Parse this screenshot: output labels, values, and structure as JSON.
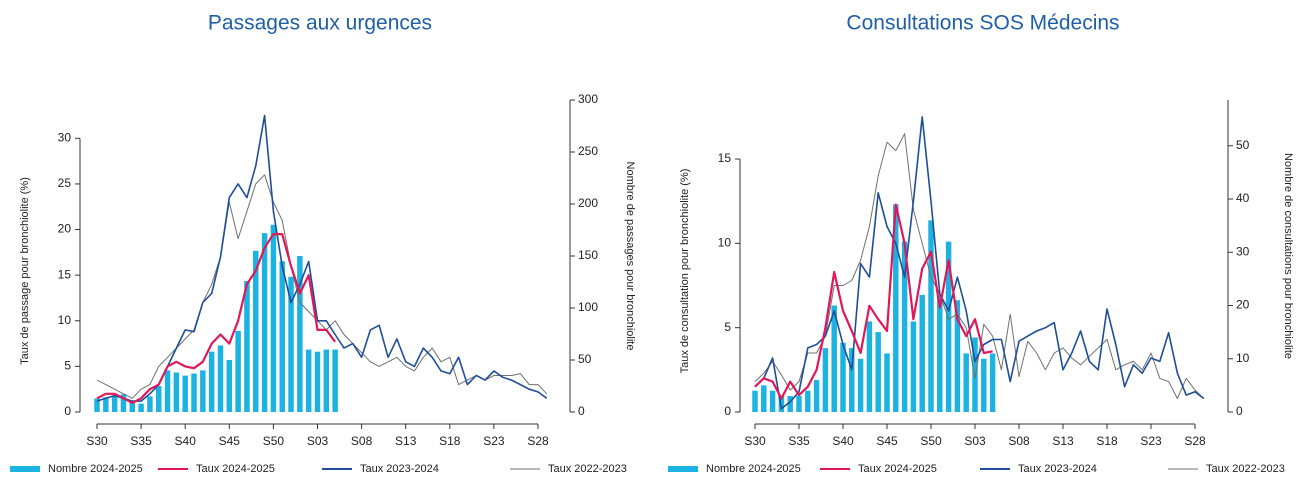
{
  "chart_data": [
    {
      "type": "bar",
      "title": "Passages aux urgences",
      "y_label": "Taux de passage pour bronchiolite (%)",
      "y2_label": "Nombre de passages pour bronchiolite",
      "categories": [
        "S30",
        null,
        null,
        null,
        null,
        "S35",
        null,
        null,
        null,
        null,
        "S40",
        null,
        null,
        null,
        null,
        "S45",
        null,
        null,
        null,
        null,
        "S50",
        null,
        null,
        null,
        null,
        "S03",
        null,
        null,
        null,
        null,
        "S08",
        null,
        null,
        null,
        null,
        "S13",
        null,
        null,
        null,
        null,
        "S18",
        null,
        null,
        null,
        null,
        "S23",
        null,
        null,
        null,
        null,
        "S28",
        null
      ],
      "ylim": [
        0,
        34.2
      ],
      "yticks": [
        0,
        5,
        10,
        15,
        20,
        25,
        30
      ],
      "y2lim": [
        0,
        300
      ],
      "y2ticks": [
        0,
        50,
        100,
        150,
        200,
        250,
        300
      ],
      "series": [
        {
          "name": "Nombre 2024-2025",
          "type": "bar",
          "axis": "y2",
          "color": "#1cb3e3",
          "values": [
            13,
            14,
            16,
            17,
            11,
            8,
            15,
            25,
            40,
            38,
            35,
            37,
            40,
            58,
            64,
            50,
            78,
            126,
            155,
            172,
            180,
            145,
            130,
            150,
            60,
            58,
            60,
            60,
            null,
            null,
            null,
            null,
            null,
            null,
            null,
            null,
            null,
            null,
            null,
            null,
            null,
            null,
            null,
            null,
            null,
            null,
            null,
            null,
            null,
            null,
            null,
            null
          ]
        },
        {
          "name": "Taux 2024-2025",
          "type": "line",
          "color": "#e0185a",
          "values": [
            1.5,
            2,
            2,
            1.5,
            1,
            1.5,
            2.5,
            3,
            5,
            5.5,
            5,
            4.8,
            5.5,
            7.5,
            8.5,
            7.5,
            10,
            14,
            15.5,
            18,
            19.5,
            19.5,
            16,
            13,
            15,
            9,
            9,
            7.7,
            null,
            null,
            null,
            null,
            null,
            null,
            null,
            null,
            null,
            null,
            null,
            null,
            null,
            null,
            null,
            null,
            null,
            null,
            null,
            null,
            null,
            null,
            null,
            null
          ]
        },
        {
          "name": "Taux 2023-2024",
          "type": "line",
          "color": "#1f4e99",
          "values": [
            1.2,
            1.5,
            1.8,
            1.5,
            1.2,
            1.2,
            2,
            3,
            5,
            7,
            9,
            8.8,
            12,
            13,
            17,
            23.5,
            25,
            23.5,
            27,
            32.5,
            22,
            16,
            12,
            14,
            16.5,
            10,
            10,
            8.5,
            7,
            7.5,
            6,
            9,
            9.5,
            6,
            8,
            5.5,
            5,
            7,
            6,
            4.5,
            4.2,
            6,
            3,
            4,
            3.5,
            4.5,
            3.8,
            3.5,
            3,
            2.5,
            2.2,
            1.5
          ]
        },
        {
          "name": "Taux 2022-2023",
          "type": "line",
          "color": "#707070",
          "values": [
            3.5,
            3,
            2.5,
            2,
            1.5,
            2.5,
            3,
            5,
            6,
            7,
            8,
            9,
            12,
            14,
            17,
            23,
            19,
            22,
            25,
            26,
            23,
            21,
            16,
            12,
            11,
            10,
            9,
            10,
            8.5,
            7.5,
            6.5,
            5.5,
            5,
            5.5,
            6,
            5,
            4.5,
            6,
            7,
            5.5,
            6,
            3,
            3.5,
            4,
            3.5,
            4,
            4,
            4,
            4.2,
            3,
            3,
            2
          ]
        }
      ]
    },
    {
      "type": "bar",
      "title": "Consultations SOS Médecins",
      "y_label": "Taux de consultation pour bronchiolite (%)",
      "y2_label": "Nombre de consultations pour bronchiolite",
      "categories": [
        "S30",
        null,
        null,
        null,
        null,
        "S35",
        null,
        null,
        null,
        null,
        "S40",
        null,
        null,
        null,
        null,
        "S45",
        null,
        null,
        null,
        null,
        "S50",
        null,
        null,
        null,
        null,
        "S03",
        null,
        null,
        null,
        null,
        "S08",
        null,
        null,
        null,
        null,
        "S13",
        null,
        null,
        null,
        null,
        "S18",
        null,
        null,
        null,
        null,
        "S23",
        null,
        null,
        null,
        null,
        "S28",
        null
      ],
      "ylim": [
        0,
        18.5
      ],
      "yticks": [
        0,
        5,
        10,
        15
      ],
      "y2lim": [
        0,
        58.6
      ],
      "y2ticks": [
        0,
        10,
        20,
        30,
        40,
        50
      ],
      "series": [
        {
          "name": "Nombre 2024-2025",
          "type": "bar",
          "axis": "y2",
          "color": "#1cb3e3",
          "values": [
            4,
            5,
            4,
            3,
            3,
            3,
            4,
            6,
            12,
            20,
            13,
            12,
            10,
            17,
            15,
            11,
            39,
            32,
            17,
            22,
            36,
            22,
            32,
            21,
            11,
            14,
            10,
            11,
            null,
            null,
            null,
            null,
            null,
            null,
            null,
            null,
            null,
            null,
            null,
            null,
            null,
            null,
            null,
            null,
            null,
            null,
            null,
            null,
            null,
            null,
            null,
            null
          ]
        },
        {
          "name": "Taux 2024-2025",
          "type": "line",
          "color": "#e0185a",
          "values": [
            1.5,
            2,
            1.8,
            0.8,
            1.8,
            1,
            1.5,
            2.5,
            5,
            8.3,
            6,
            4.8,
            3.5,
            6.3,
            5.5,
            4.8,
            12.3,
            10,
            5.5,
            8.5,
            9.5,
            6.2,
            9,
            5.5,
            4.5,
            5.5,
            3.5,
            3.6,
            null,
            null,
            null,
            null,
            null,
            null,
            null,
            null,
            null,
            null,
            null,
            null,
            null,
            null,
            null,
            null,
            null,
            null,
            null,
            null,
            null,
            null,
            null,
            null
          ]
        },
        {
          "name": "Taux 2023-2024",
          "type": "line",
          "color": "#1f4e99",
          "values": [
            1.5,
            2,
            3.2,
            0.2,
            0.6,
            1.2,
            3.8,
            4,
            4.5,
            6,
            4,
            2.5,
            8.8,
            8,
            13,
            11,
            10,
            8,
            12.5,
            17.5,
            12.5,
            7,
            6,
            8,
            6,
            3,
            4,
            4.3,
            4.3,
            1.8,
            4.2,
            4.5,
            4.8,
            5,
            5.3,
            2.5,
            3.5,
            4.8,
            3,
            2.5,
            6.1,
            4,
            1.5,
            2.8,
            2.3,
            3.2,
            3,
            4.7,
            2.3,
            1,
            1.2,
            0.8
          ]
        },
        {
          "name": "Taux 2022-2023",
          "type": "line",
          "color": "#707070",
          "values": [
            1.8,
            2.3,
            3,
            2.2,
            1.3,
            1.8,
            3.5,
            3.5,
            4.5,
            7.5,
            7.5,
            7.8,
            9,
            11,
            14,
            16,
            15.5,
            16.5,
            12,
            10,
            8,
            7,
            5.5,
            5.8,
            5,
            2,
            5.2,
            4.5,
            2.5,
            5.8,
            2.1,
            4.2,
            3.5,
            2.5,
            3.5,
            3.8,
            3.2,
            2.8,
            3.3,
            3.8,
            4.3,
            2.5,
            2.8,
            3,
            2.5,
            3.5,
            2,
            1.8,
            0.8,
            2,
            1.3,
            0.8
          ]
        }
      ]
    }
  ]
}
